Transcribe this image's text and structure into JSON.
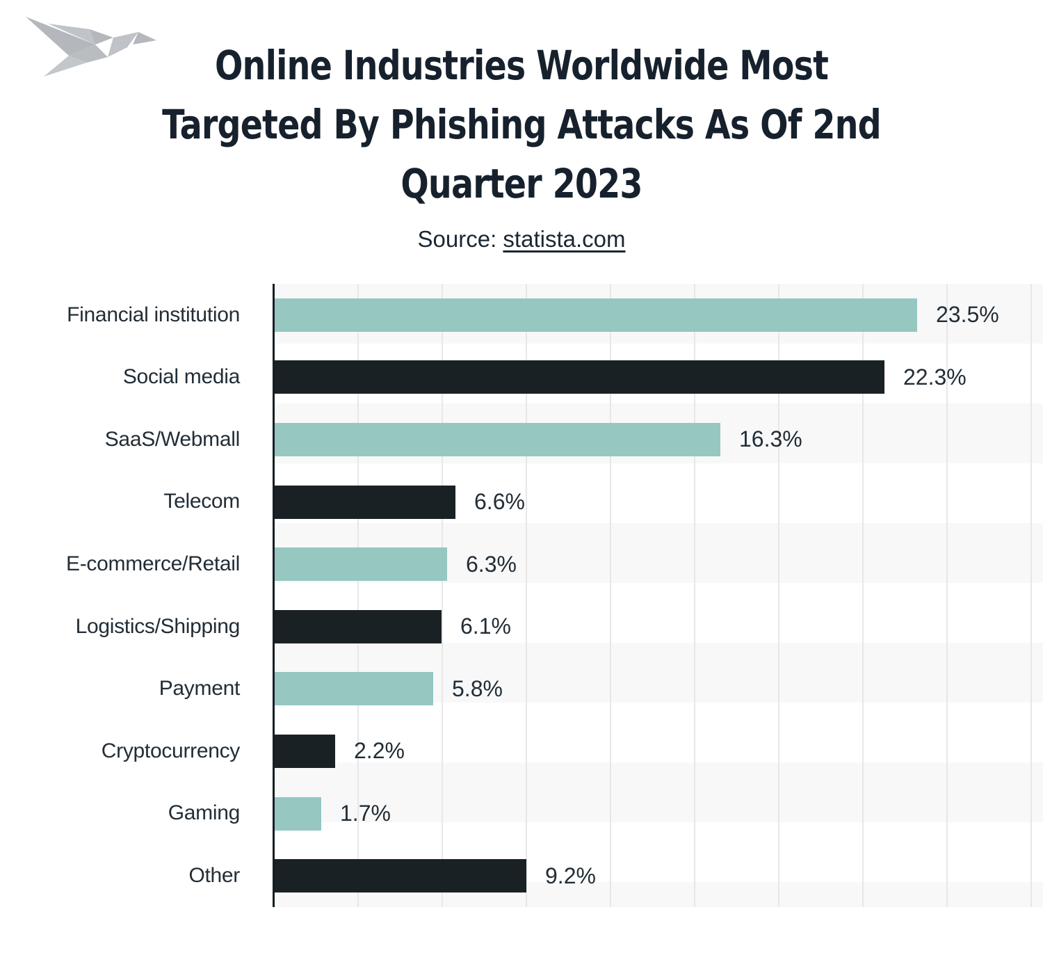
{
  "logo": {
    "icon": "origami-bird",
    "color": "#b9bdc1"
  },
  "header": {
    "title_lines": [
      "Online Industries Worldwide Most",
      "Targeted By Phishing Attacks As Of 2nd",
      "Quarter 2023"
    ],
    "source_prefix": "Source: ",
    "source_link_text": "statista.com"
  },
  "chart_data": {
    "type": "bar",
    "orientation": "horizontal",
    "title": "Online Industries Worldwide Most Targeted By Phishing Attacks As Of 2nd Quarter 2023",
    "source": "statista.com",
    "categories": [
      "Financial institution",
      "Social media",
      "SaaS/Webmall",
      "Telecom",
      "E-commerce/Retail",
      "Logistics/Shipping",
      "Payment",
      "Cryptocurrency",
      "Gaming",
      "Other"
    ],
    "values": [
      23.5,
      22.3,
      16.3,
      6.6,
      6.3,
      6.1,
      5.8,
      2.2,
      1.7,
      9.2
    ],
    "value_labels": [
      "23.5%",
      "22.3%",
      "16.3%",
      "6.6%",
      "6.3%",
      "6.1%",
      "5.8%",
      "2.2%",
      "1.7%",
      "9.2%"
    ],
    "unit": "%",
    "xlim": [
      0,
      28.1
    ],
    "legend": "none",
    "grid": {
      "vertical_gridlines": true,
      "gridline_color": "#e7e7e7",
      "row_stripe_color": "#f8f8f8"
    },
    "bar_colors_alternating": [
      "#96c7c1",
      "#1a2124"
    ],
    "axis_color": "#161e23",
    "label_color": "#222d36",
    "value_label_position": "right-of-bar"
  }
}
